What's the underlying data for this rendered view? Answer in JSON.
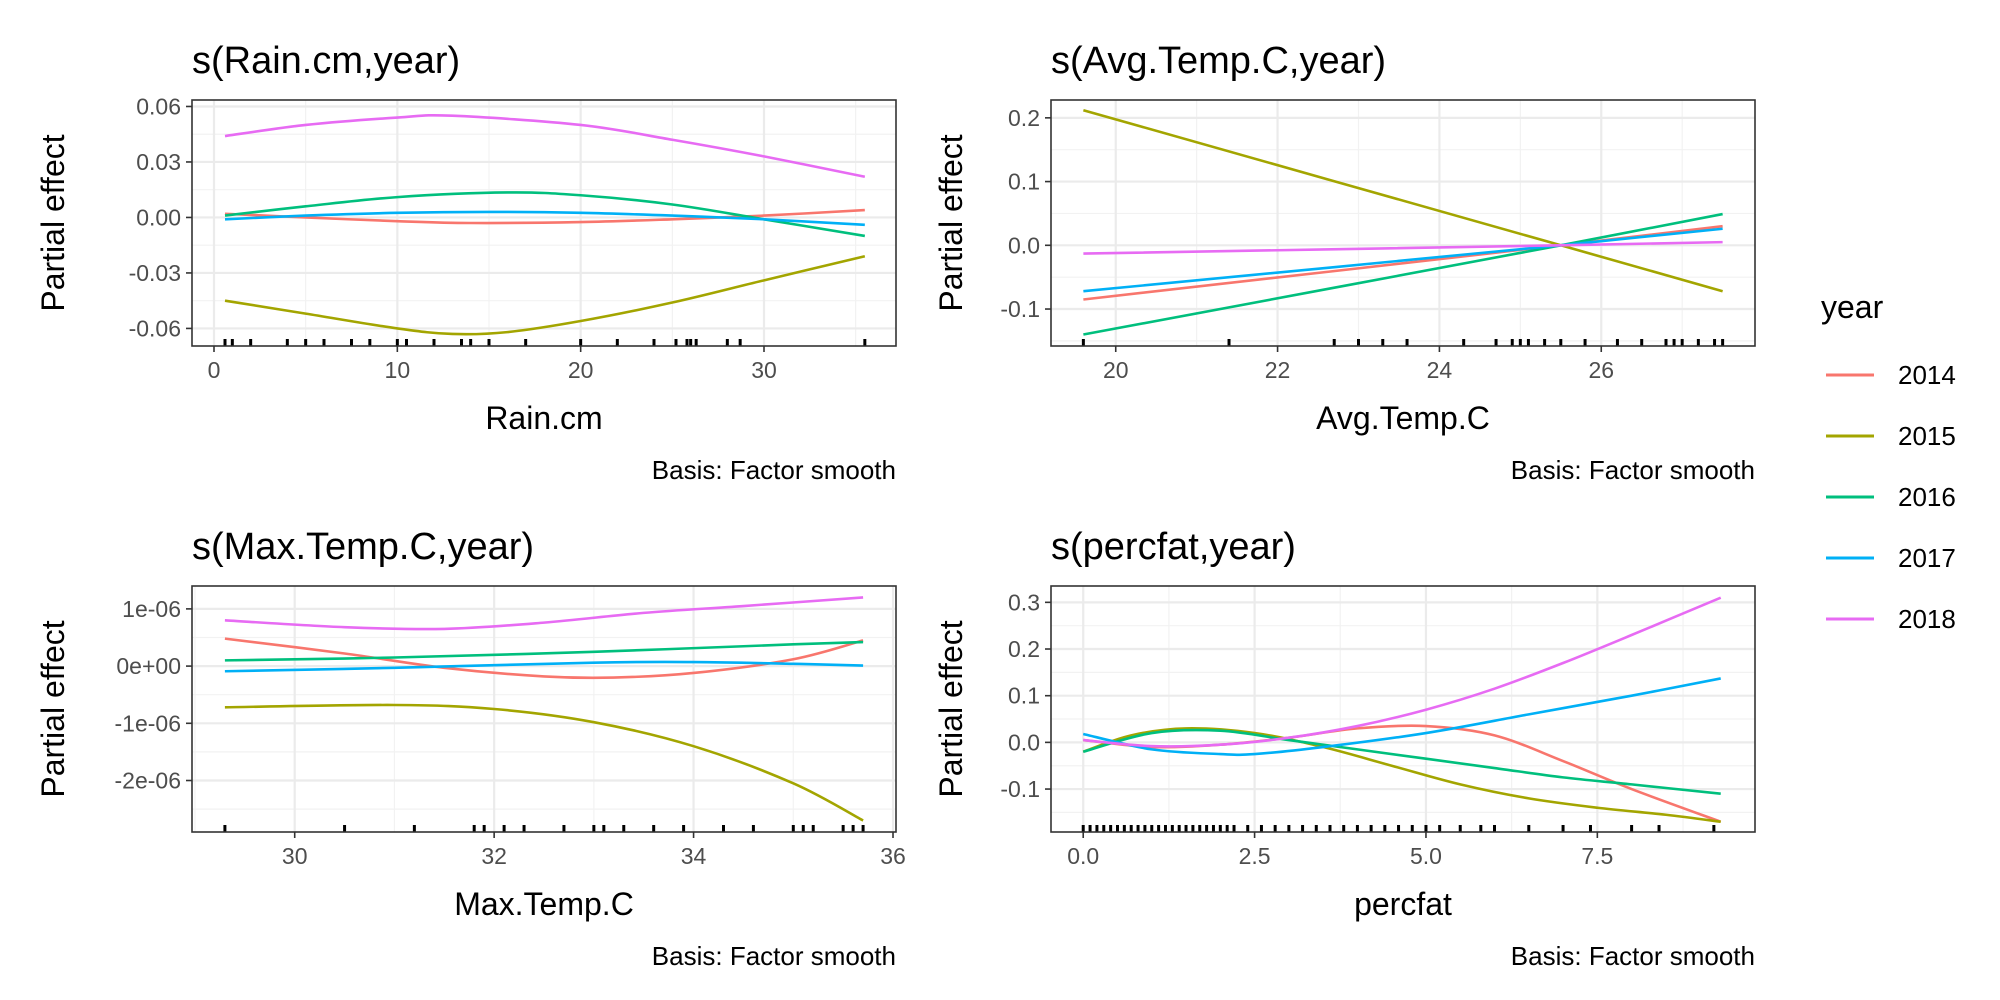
{
  "legend": {
    "title": "year",
    "position": "right",
    "entries": [
      {
        "label": "2014",
        "color": "#F8766D"
      },
      {
        "label": "2015",
        "color": "#A3A500"
      },
      {
        "label": "2016",
        "color": "#00BF7D"
      },
      {
        "label": "2017",
        "color": "#00B0F6"
      },
      {
        "label": "2018",
        "color": "#E76BF3"
      }
    ]
  },
  "chart_data": [
    {
      "type": "line",
      "title": "s(Rain.cm,year)",
      "xlabel": "Rain.cm",
      "ylabel": "Partial effect",
      "caption": "Basis: Factor smooth",
      "xlim": [
        -1.2,
        37.2
      ],
      "ylim": [
        -0.0695,
        0.0635
      ],
      "xticks": [
        0,
        10,
        20,
        30
      ],
      "xtick_labels": [
        "0",
        "10",
        "20",
        "30"
      ],
      "yticks": [
        -0.06,
        -0.03,
        0.0,
        0.03,
        0.06
      ],
      "ytick_labels": [
        "-0.06",
        "-0.03",
        "0.00",
        "0.03",
        "0.06"
      ],
      "grid": true,
      "series": [
        {
          "name": "2014",
          "x": [
            0.6,
            5,
            10,
            14,
            20,
            25,
            30,
            35.5
          ],
          "y": [
            0.002,
            0.0,
            -0.002,
            -0.003,
            -0.0025,
            -0.001,
            0.001,
            0.004
          ]
        },
        {
          "name": "2015",
          "x": [
            0.6,
            5,
            10,
            13,
            16,
            20,
            25,
            30,
            35.5
          ],
          "y": [
            -0.045,
            -0.052,
            -0.06,
            -0.063,
            -0.062,
            -0.056,
            -0.046,
            -0.034,
            -0.021
          ]
        },
        {
          "name": "2016",
          "x": [
            0.6,
            5,
            10,
            16,
            20,
            25,
            30,
            35.5
          ],
          "y": [
            0.001,
            0.006,
            0.011,
            0.0135,
            0.012,
            0.007,
            -0.001,
            -0.01
          ]
        },
        {
          "name": "2017",
          "x": [
            0.6,
            5,
            10,
            15,
            20,
            25,
            30,
            35.5
          ],
          "y": [
            -0.001,
            0.001,
            0.0025,
            0.003,
            0.0025,
            0.001,
            -0.001,
            -0.004
          ]
        },
        {
          "name": "2018",
          "x": [
            0.6,
            5,
            10,
            13,
            20,
            25,
            30,
            35.5
          ],
          "y": [
            0.044,
            0.05,
            0.054,
            0.055,
            0.05,
            0.042,
            0.033,
            0.022
          ]
        }
      ],
      "rug": [
        0.6,
        1,
        2,
        4,
        5,
        6,
        7.5,
        8.5,
        10,
        10.5,
        12,
        13.5,
        14,
        15,
        17,
        20,
        22,
        24,
        25.2,
        25.8,
        26,
        26.3,
        28,
        28.7,
        35.5
      ]
    },
    {
      "type": "line",
      "title": "s(Avg.Temp.C,year)",
      "xlabel": "Avg.Temp.C",
      "ylabel": "Partial effect",
      "caption": "Basis: Factor smooth",
      "xlim": [
        19.2,
        27.9
      ],
      "ylim": [
        -0.158,
        0.228
      ],
      "xticks": [
        20,
        22,
        24,
        26
      ],
      "xtick_labels": [
        "20",
        "22",
        "24",
        "26"
      ],
      "yticks": [
        -0.1,
        0.0,
        0.1,
        0.2
      ],
      "ytick_labels": [
        "-0.1",
        "0.0",
        "0.1",
        "0.2"
      ],
      "grid": true,
      "series": [
        {
          "name": "2014",
          "x": [
            19.6,
            25.5,
            27.5
          ],
          "y": [
            -0.085,
            0.0,
            0.03
          ]
        },
        {
          "name": "2015",
          "x": [
            19.6,
            25.5,
            27.5
          ],
          "y": [
            0.212,
            0.0,
            -0.072
          ]
        },
        {
          "name": "2016",
          "x": [
            19.6,
            25.5,
            27.5
          ],
          "y": [
            -0.14,
            0.0,
            0.049
          ]
        },
        {
          "name": "2017",
          "x": [
            19.6,
            25.5,
            27.5
          ],
          "y": [
            -0.072,
            0.0,
            0.026
          ]
        },
        {
          "name": "2018",
          "x": [
            19.6,
            25.5,
            27.5
          ],
          "y": [
            -0.013,
            0.0,
            0.005
          ]
        }
      ],
      "rug": [
        19.6,
        21.4,
        22.7,
        23.0,
        23.3,
        23.6,
        24.3,
        24.7,
        24.9,
        25.0,
        25.1,
        25.3,
        25.5,
        25.8,
        26.2,
        26.5,
        26.8,
        26.9,
        27.0,
        27.2,
        27.4,
        27.5
      ]
    },
    {
      "type": "line",
      "title": "s(Max.Temp.C,year)",
      "xlabel": "Max.Temp.C",
      "ylabel": "Partial effect",
      "caption": "Basis: Factor smooth",
      "xlim": [
        28.97,
        36.03
      ],
      "ylim": [
        -2.9e-06,
        1.4e-06
      ],
      "xticks": [
        30,
        32,
        34,
        36
      ],
      "xtick_labels": [
        "30",
        "32",
        "34",
        "36"
      ],
      "yticks": [
        -2e-06,
        -1e-06,
        0.0,
        1e-06
      ],
      "ytick_labels": [
        "-2e-06",
        "-1e-06",
        "0e+00",
        "1e-06"
      ],
      "grid": true,
      "series": [
        {
          "name": "2014",
          "x": [
            29.3,
            30.5,
            31.5,
            32.5,
            33.2,
            34.0,
            35.0,
            35.7
          ],
          "y": [
            4.8e-07,
            2.2e-07,
            -3e-08,
            -1.8e-07,
            -2e-07,
            -1.2e-07,
            1.2e-07,
            4.5e-07
          ]
        },
        {
          "name": "2015",
          "x": [
            29.3,
            31.0,
            32.0,
            33.0,
            34.0,
            35.0,
            35.7
          ],
          "y": [
            -7.2e-07,
            -6.8e-07,
            -7.5e-07,
            -9.8e-07,
            -1.4e-06,
            -2.05e-06,
            -2.7e-06
          ]
        },
        {
          "name": "2016",
          "x": [
            29.3,
            31.0,
            33.0,
            35.0,
            35.7
          ],
          "y": [
            1e-07,
            1.5e-07,
            2.5e-07,
            3.8e-07,
            4.2e-07
          ]
        },
        {
          "name": "2017",
          "x": [
            29.3,
            31.0,
            33.0,
            34.0,
            35.0,
            35.7
          ],
          "y": [
            -9e-08,
            -3e-08,
            6e-08,
            7e-08,
            4e-08,
            1e-08
          ]
        },
        {
          "name": "2018",
          "x": [
            29.3,
            30.5,
            31.5,
            32.5,
            33.5,
            34.5,
            35.7
          ],
          "y": [
            8e-07,
            6.8e-07,
            6.5e-07,
            7.6e-07,
            9.3e-07,
            1.05e-06,
            1.2e-06
          ]
        }
      ],
      "rug": [
        29.3,
        30.5,
        31.2,
        31.8,
        31.9,
        32.1,
        32.3,
        32.7,
        33.0,
        33.1,
        33.3,
        33.6,
        33.9,
        34.3,
        34.6,
        35.0,
        35.1,
        35.2,
        35.5,
        35.6,
        35.7
      ]
    },
    {
      "type": "line",
      "title": "s(percfat,year)",
      "xlabel": "percfat",
      "ylabel": "Partial effect",
      "caption": "Basis: Factor smooth",
      "xlim": [
        -0.47,
        9.8
      ],
      "ylim": [
        -0.192,
        0.335
      ],
      "xticks": [
        0.0,
        2.5,
        5.0,
        7.5
      ],
      "xtick_labels": [
        "0.0",
        "2.5",
        "5.0",
        "7.5"
      ],
      "yticks": [
        -0.1,
        0.0,
        0.1,
        0.2,
        0.3
      ],
      "ytick_labels": [
        "-0.1",
        "0.0",
        "0.1",
        "0.2",
        "0.3"
      ],
      "grid": true,
      "series": [
        {
          "name": "2014",
          "x": [
            0.0,
            1.0,
            2.0,
            3.0,
            4.0,
            5.0,
            6.0,
            7.0,
            8.0,
            9.3
          ],
          "y": [
            0.005,
            -0.01,
            -0.005,
            0.01,
            0.03,
            0.035,
            0.015,
            -0.04,
            -0.1,
            -0.17
          ]
        },
        {
          "name": "2015",
          "x": [
            0.0,
            0.7,
            1.5,
            2.5,
            3.5,
            4.5,
            5.5,
            6.5,
            7.5,
            8.5,
            9.3
          ],
          "y": [
            -0.02,
            0.015,
            0.03,
            0.02,
            -0.01,
            -0.05,
            -0.09,
            -0.12,
            -0.14,
            -0.155,
            -0.17
          ]
        },
        {
          "name": "2016",
          "x": [
            0.0,
            1.0,
            2.0,
            3.0,
            4.0,
            5.0,
            6.0,
            7.0,
            8.0,
            9.3
          ],
          "y": [
            -0.02,
            0.02,
            0.025,
            0.005,
            -0.015,
            -0.035,
            -0.055,
            -0.075,
            -0.09,
            -0.11
          ]
        },
        {
          "name": "2017",
          "x": [
            0.0,
            1.0,
            2.0,
            2.5,
            3.5,
            5.0,
            6.5,
            8.0,
            9.3
          ],
          "y": [
            0.018,
            -0.015,
            -0.025,
            -0.025,
            -0.01,
            0.02,
            0.06,
            0.1,
            0.137
          ]
        },
        {
          "name": "2018",
          "x": [
            0.0,
            1.0,
            2.0,
            3.0,
            4.0,
            5.0,
            6.0,
            7.0,
            8.0,
            9.3
          ],
          "y": [
            0.005,
            -0.008,
            -0.005,
            0.01,
            0.035,
            0.07,
            0.115,
            0.17,
            0.23,
            0.31
          ]
        }
      ],
      "rug": [
        0.0,
        0.1,
        0.2,
        0.3,
        0.4,
        0.5,
        0.6,
        0.7,
        0.8,
        0.9,
        1.0,
        1.1,
        1.2,
        1.3,
        1.4,
        1.5,
        1.6,
        1.7,
        1.8,
        1.9,
        2.0,
        2.1,
        2.2,
        2.4,
        2.6,
        2.8,
        3.0,
        3.2,
        3.4,
        3.6,
        3.8,
        4.0,
        4.2,
        4.4,
        4.6,
        4.8,
        5.0,
        5.2,
        5.5,
        5.8,
        6.0,
        6.5,
        7.0,
        7.4,
        8.0,
        8.4,
        9.2
      ]
    }
  ]
}
